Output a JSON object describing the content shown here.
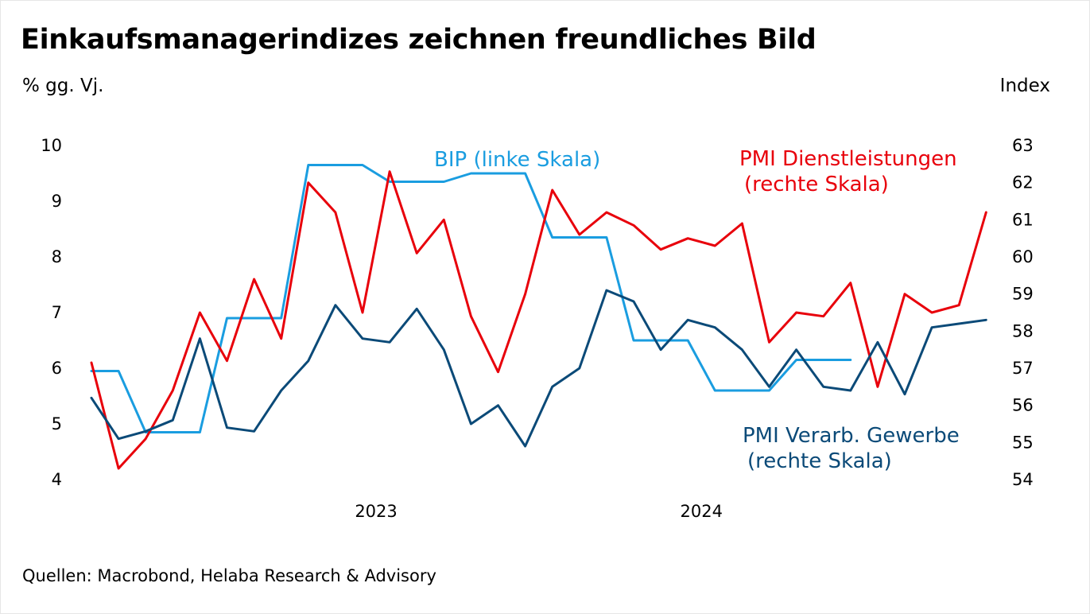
{
  "title": "Einkaufsmanagerindizes zeichnen freundliches Bild",
  "unit_left": "% gg. Vj.",
  "unit_right": "Index",
  "source": "Quellen: Macrobond, Helaba Research & Advisory",
  "colors": {
    "bip": "#1a9de0",
    "pmi_services": "#e8000b",
    "pmi_manufacturing": "#0b4a78"
  },
  "chart_data": {
    "type": "line",
    "x_labels": [
      "2023",
      "2024"
    ],
    "x_label_month_index": [
      10.5,
      22.5
    ],
    "left_axis": {
      "label": "% gg. Vj.",
      "range": [
        4,
        10
      ],
      "ticks": [
        4,
        5,
        6,
        7,
        8,
        9,
        10
      ]
    },
    "right_axis": {
      "label": "Index",
      "range": [
        54,
        63
      ],
      "ticks": [
        54,
        55,
        56,
        57,
        58,
        59,
        60,
        61,
        62,
        63
      ]
    },
    "annotations": {
      "bip": [
        "BIP (linke Skala)"
      ],
      "pmi_services": [
        "PMI Dienstleistungen",
        "(rechte Skala)"
      ],
      "pmi_manufacturing": [
        "PMI Verarb. Gewerbe",
        "(rechte Skala)"
      ]
    },
    "series": [
      {
        "name": "BIP (linke Skala)",
        "key": "bip",
        "axis": "left",
        "values": [
          5.95,
          5.95,
          4.85,
          4.85,
          4.85,
          6.9,
          6.9,
          6.9,
          9.65,
          9.65,
          9.65,
          9.35,
          9.35,
          9.35,
          9.5,
          9.5,
          9.5,
          8.35,
          8.35,
          8.35,
          6.5,
          6.5,
          6.5,
          5.6,
          5.6,
          5.6,
          6.15,
          6.15,
          6.15
        ]
      },
      {
        "name": "PMI Dienstleistungen (rechte Skala)",
        "key": "pmi_services",
        "axis": "right",
        "values": [
          57.15,
          54.3,
          55.1,
          56.4,
          58.5,
          57.2,
          59.4,
          57.8,
          62.0,
          61.2,
          58.5,
          62.3,
          60.1,
          61.0,
          58.4,
          56.9,
          59.0,
          61.8,
          60.6,
          61.2,
          60.85,
          60.2,
          60.5,
          60.3,
          60.9,
          57.7,
          58.5,
          58.4,
          59.3,
          56.5,
          59.0,
          58.5,
          58.7,
          61.2
        ]
      },
      {
        "name": "PMI Verarb. Gewerbe (rechte Skala)",
        "key": "pmi_manufacturing",
        "axis": "right",
        "values": [
          56.2,
          55.1,
          55.3,
          55.6,
          57.8,
          55.4,
          55.3,
          56.4,
          57.2,
          58.7,
          57.8,
          57.7,
          58.6,
          57.5,
          55.5,
          56.0,
          54.9,
          56.5,
          57.0,
          59.1,
          58.8,
          57.5,
          58.3,
          58.1,
          57.5,
          56.5,
          57.5,
          56.5,
          56.4,
          57.7,
          56.3,
          58.1,
          58.2,
          58.3
        ]
      }
    ]
  }
}
